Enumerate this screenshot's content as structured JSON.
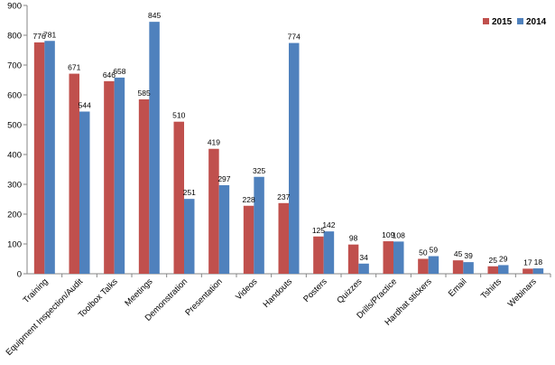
{
  "chart_data": {
    "type": "bar",
    "title": "",
    "xlabel": "",
    "ylabel": "",
    "ylim": [
      0,
      900
    ],
    "yticks": [
      0,
      100,
      200,
      300,
      400,
      500,
      600,
      700,
      800,
      900
    ],
    "grid": false,
    "legend_position": "top-right",
    "categories": [
      "Training",
      "Equipment Inspection/Audit",
      "Toolbox Talks",
      "Meetings",
      "Demonstration",
      "Presentation",
      "Videos",
      "Handouts",
      "Posters",
      "Quizzes",
      "Drills/Practice",
      "Hardhat stickers",
      "Email",
      "Tshirts",
      "Webinars"
    ],
    "series": [
      {
        "name": "2015",
        "color": "#C0504D",
        "values": [
          776,
          671,
          646,
          585,
          510,
          419,
          228,
          237,
          125,
          98,
          109,
          50,
          45,
          25,
          17
        ]
      },
      {
        "name": "2014",
        "color": "#4F81BD",
        "values": [
          781,
          544,
          658,
          845,
          251,
          297,
          325,
          774,
          142,
          34,
          108,
          59,
          39,
          29,
          18
        ]
      }
    ]
  }
}
